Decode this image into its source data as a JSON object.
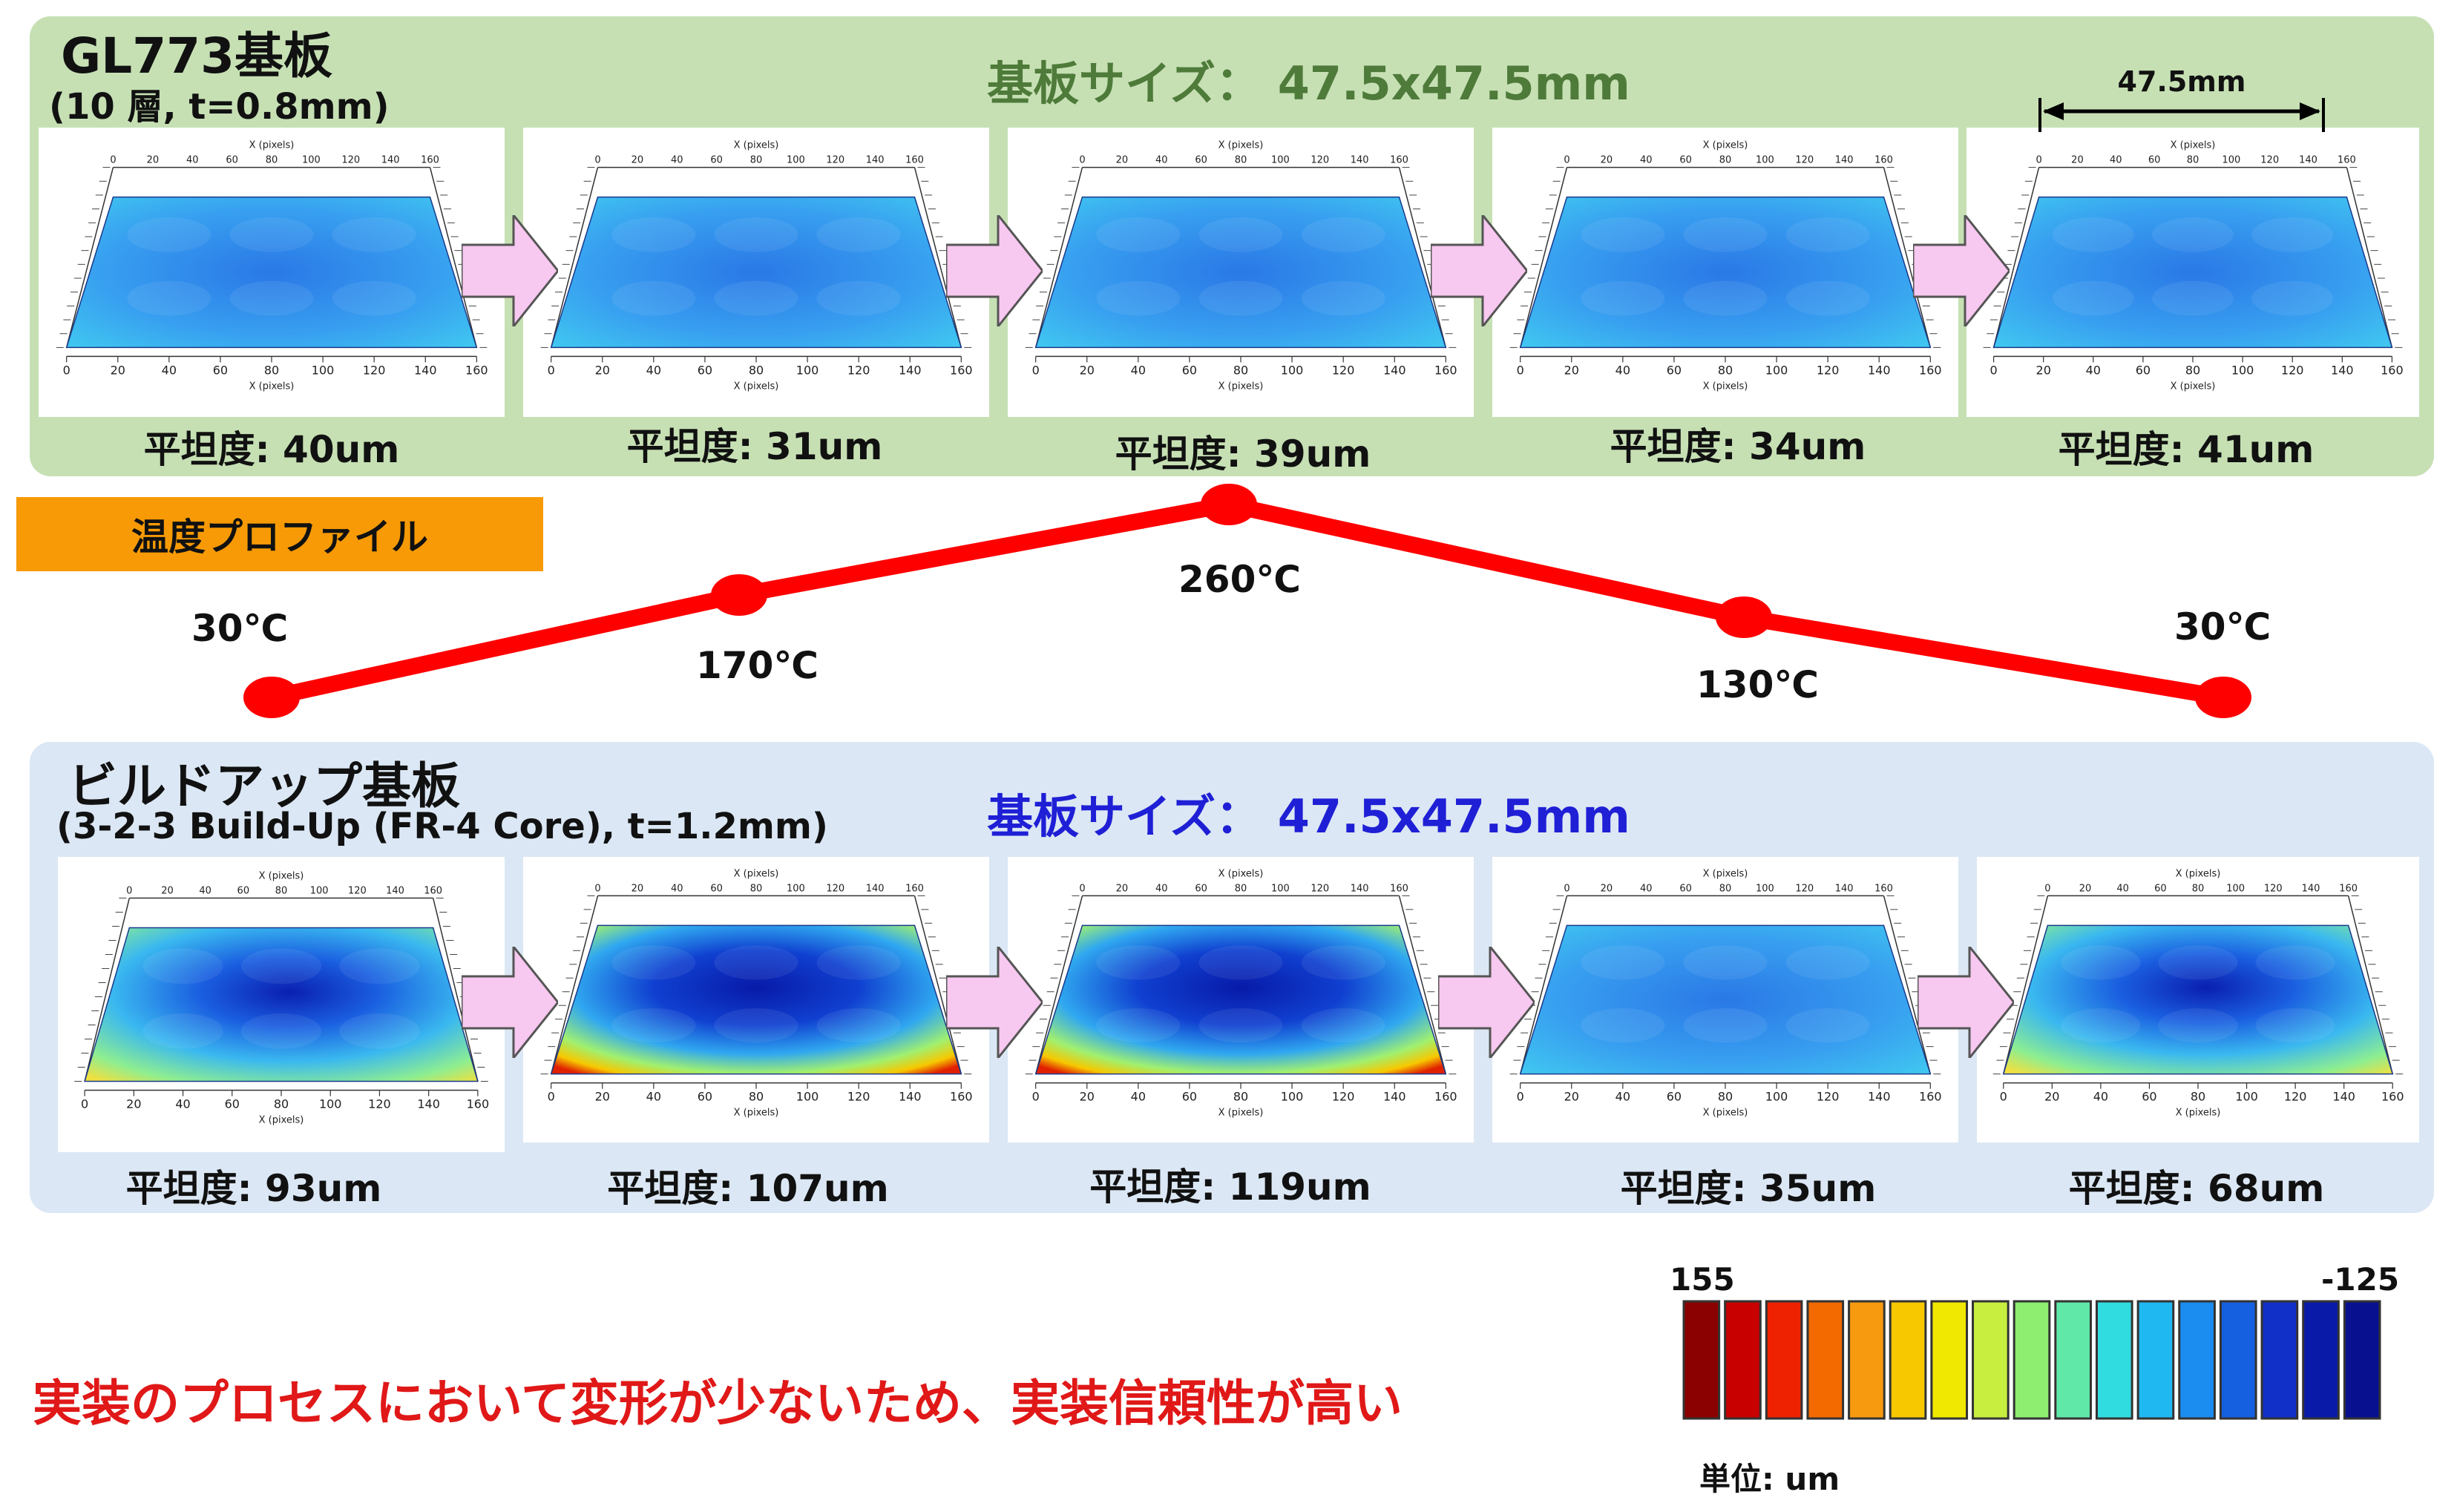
{
  "top": {
    "title": "GL773基板",
    "subtitle": "(10 層, t=0.8mm)",
    "size_label": "基板サイズ：  47.5x47.5mm",
    "dimension_label": "47.5mm",
    "plots": [
      {
        "flatness": "平坦度: 40um",
        "pattern": "flat"
      },
      {
        "flatness": "平坦度: 31um",
        "pattern": "flat"
      },
      {
        "flatness": "平坦度: 39um",
        "pattern": "flat"
      },
      {
        "flatness": "平坦度: 34um",
        "pattern": "flat"
      },
      {
        "flatness": "平坦度: 41um",
        "pattern": "flat"
      }
    ]
  },
  "profile": {
    "badge": "温度プロファイル",
    "temps": [
      "30℃",
      "170℃",
      "260℃",
      "130℃",
      "30℃"
    ],
    "values": [
      30,
      170,
      260,
      130,
      30
    ],
    "line_color": "#ff0000"
  },
  "bottom": {
    "title": "ビルドアップ基板",
    "subtitle": "(3-2-3 Build-Up (FR-4 Core), t=1.2mm)",
    "size_label": "基板サイズ：  47.5x47.5mm",
    "plots": [
      {
        "flatness": "平坦度: 93um",
        "pattern": "bowl"
      },
      {
        "flatness": "平坦度: 107um",
        "pattern": "bowl-strong"
      },
      {
        "flatness": "平坦度: 119um",
        "pattern": "bowl-strong"
      },
      {
        "flatness": "平坦度: 35um",
        "pattern": "flat"
      },
      {
        "flatness": "平坦度: 68um",
        "pattern": "bowl"
      }
    ]
  },
  "plot_axis": {
    "x_title": "X (pixels)",
    "ticks": [
      "0",
      "20",
      "40",
      "60",
      "80",
      "100",
      "120",
      "140",
      "160"
    ]
  },
  "conclusion": "実装のプロセスにおいて変形が少ないため、実装信頼性が高い",
  "colorbar": {
    "max_label": "155",
    "min_label": "-125",
    "unit": "単位: um",
    "colors": [
      "#8b0000",
      "#c80000",
      "#ee2200",
      "#f26a00",
      "#f79a10",
      "#f7c800",
      "#f0e800",
      "#c8ef40",
      "#8eee70",
      "#60e8a8",
      "#30dce0",
      "#20b8f0",
      "#1b8cf0",
      "#1560e0",
      "#1030c8",
      "#0a1aa8",
      "#081090"
    ]
  }
}
